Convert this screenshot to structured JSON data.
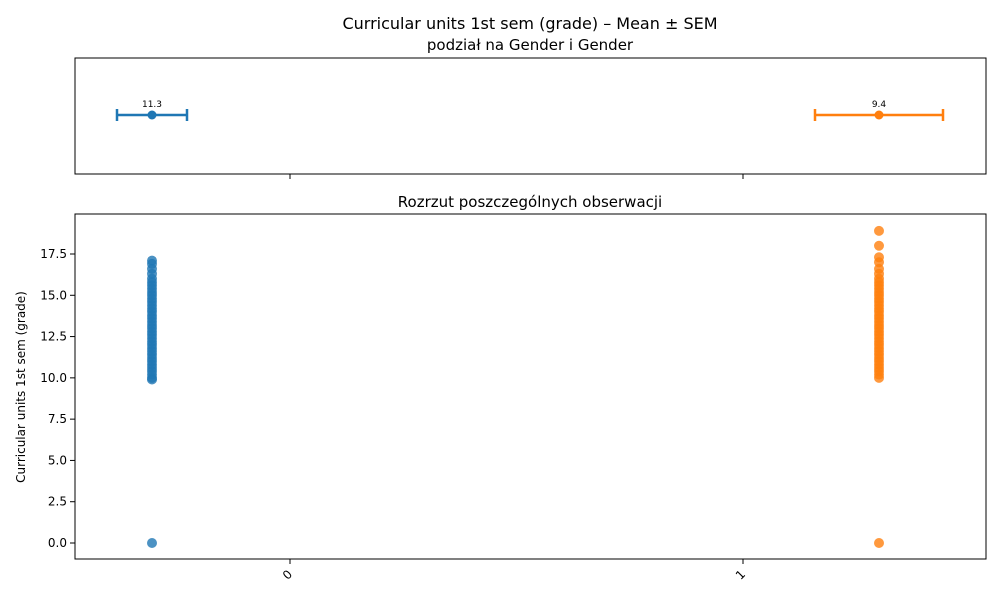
{
  "figure": {
    "title_line1": "Curricular units 1st sem (grade) – Mean ± SEM",
    "title_line2": "podział na Gender i Gender"
  },
  "chart_data": [
    {
      "type": "errorbar",
      "title": "Curricular units 1st sem (grade) – Mean ± SEM podział na Gender i Gender",
      "orientation": "horizontal",
      "categories": [
        "0",
        "1"
      ],
      "series": [
        {
          "category": "0",
          "mean": 11.3,
          "mean_label": "11.3",
          "color": "#1f77b4"
        },
        {
          "category": "1",
          "mean": 9.4,
          "mean_label": "9.4",
          "color": "#ff7f0e"
        }
      ],
      "xticks": [
        "0",
        "1"
      ],
      "yticks_visible": false
    },
    {
      "type": "scatter",
      "title": "Rozrzut poszczególnych obserwacji",
      "xlabel": "",
      "ylabel": "Curricular units 1st sem (grade)",
      "categories": [
        "0",
        "1"
      ],
      "ylim": [
        -0.9,
        19.8
      ],
      "yticks": [
        0.0,
        2.5,
        5.0,
        7.5,
        10.0,
        12.5,
        15.0,
        17.5
      ],
      "ytick_labels": [
        "0.0",
        "2.5",
        "5.0",
        "7.5",
        "10.0",
        "12.5",
        "15.0",
        "17.5"
      ],
      "xtick_labels": [
        "0",
        "1"
      ],
      "xtick_rotation": 45,
      "series": [
        {
          "category": "0",
          "color": "#1f77b4",
          "values": [
            0,
            9.9,
            10.0,
            10.2,
            10.4,
            10.6,
            10.8,
            11.0,
            11.2,
            11.4,
            11.6,
            11.8,
            12.0,
            12.2,
            12.4,
            12.6,
            12.8,
            13.0,
            13.2,
            13.4,
            13.6,
            13.8,
            14.0,
            14.2,
            14.4,
            14.6,
            14.8,
            15.0,
            15.2,
            15.4,
            15.6,
            15.8,
            16.0,
            16.3,
            16.6,
            16.9,
            17.1
          ]
        },
        {
          "category": "1",
          "color": "#ff7f0e",
          "values": [
            0,
            10.0,
            10.2,
            10.4,
            10.6,
            10.8,
            11.0,
            11.2,
            11.4,
            11.6,
            11.8,
            12.0,
            12.2,
            12.4,
            12.6,
            12.8,
            13.0,
            13.2,
            13.4,
            13.6,
            13.8,
            14.0,
            14.2,
            14.4,
            14.6,
            14.8,
            15.0,
            15.2,
            15.4,
            15.6,
            15.8,
            16.0,
            16.3,
            16.6,
            17.0,
            17.3,
            18.0,
            18.9
          ]
        }
      ]
    }
  ]
}
